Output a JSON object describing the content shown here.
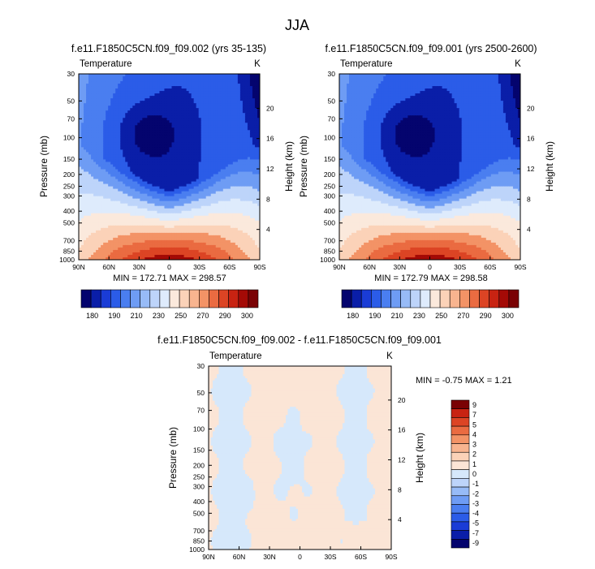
{
  "main_title": "JJA",
  "colors": {
    "palette": [
      "#04046e",
      "#0a1ea8",
      "#1a3cd6",
      "#2b5ce8",
      "#4a7ef0",
      "#6e9cf4",
      "#97bbf7",
      "#bdd4fa",
      "#deebfc",
      "#fbe9dc",
      "#fbd2b8",
      "#f8b48f",
      "#f39366",
      "#ea6b41",
      "#dc4424",
      "#c82312",
      "#a40a06",
      "#7a0204"
    ],
    "diff_palette": [
      "#04046e",
      "#0a1ea8",
      "#1a3cd6",
      "#2b5ce8",
      "#4a7ef0",
      "#6e9cf4",
      "#97bbf7",
      "#bdd4fa",
      "#d6e8fb",
      "#fbe5d6",
      "#fbd2b8",
      "#f8b48f",
      "#f39366",
      "#ea6b41",
      "#dc4424",
      "#c82312",
      "#7a0204"
    ]
  },
  "chart_data": [
    {
      "type": "heatmap",
      "id": "panel-1",
      "title": "f.e11.F1850C5CN.f09_f09.002 (yrs 35-135)",
      "left_label": "Temperature",
      "right_label": "K",
      "ylabel": "Pressure (mb)",
      "y2label": "Height (km)",
      "x_ticks": [
        "90N",
        "60N",
        "30N",
        "0",
        "30S",
        "60S",
        "90S"
      ],
      "y_ticks": [
        "30",
        "50",
        "70",
        "100",
        "150",
        "200",
        "250",
        "300",
        "400",
        "500",
        "700",
        "850",
        "1000"
      ],
      "y2_ticks": [
        "20",
        "16",
        "12",
        "8",
        "4"
      ],
      "stats": "MIN = 172.71   MAX = 298.57",
      "levels": [
        180,
        190,
        200,
        210,
        220,
        230,
        240,
        250,
        260,
        270,
        280,
        290,
        300
      ],
      "level_labels": [
        "180",
        "190",
        "210",
        "230",
        "250",
        "270",
        "290",
        "300"
      ]
    },
    {
      "type": "heatmap",
      "id": "panel-2",
      "title": "f.e11.F1850C5CN.f09_f09.001 (yrs 2500-2600)",
      "left_label": "Temperature",
      "right_label": "K",
      "ylabel": "Pressure (mb)",
      "y2label": "Height (km)",
      "x_ticks": [
        "90N",
        "60N",
        "30N",
        "0",
        "30S",
        "60S",
        "90S"
      ],
      "y_ticks": [
        "30",
        "50",
        "70",
        "100",
        "150",
        "200",
        "250",
        "300",
        "400",
        "500",
        "700",
        "850",
        "1000"
      ],
      "y2_ticks": [
        "20",
        "16",
        "12",
        "8",
        "4"
      ],
      "stats": "MIN = 172.79   MAX = 298.58",
      "levels": [
        180,
        190,
        200,
        210,
        220,
        230,
        240,
        250,
        260,
        270,
        280,
        290,
        300
      ],
      "level_labels": [
        "180",
        "190",
        "210",
        "230",
        "250",
        "270",
        "290",
        "300"
      ]
    },
    {
      "type": "heatmap",
      "id": "panel-diff",
      "title": "f.e11.F1850C5CN.f09_f09.002 - f.e11.F1850C5CN.f09_f09.001",
      "left_label": "Temperature",
      "right_label": "K",
      "ylabel": "Pressure (mb)",
      "y2label": "Height (km)",
      "x_ticks": [
        "90N",
        "60N",
        "30N",
        "0",
        "30S",
        "60S",
        "90S"
      ],
      "y_ticks": [
        "30",
        "50",
        "70",
        "100",
        "150",
        "200",
        "250",
        "300",
        "400",
        "500",
        "700",
        "850",
        "1000"
      ],
      "y2_ticks": [
        "20",
        "16",
        "12",
        "8",
        "4"
      ],
      "stats": "MIN =  -0.75   MAX =   1.21",
      "level_labels": [
        "9",
        "7",
        "5",
        "4",
        "3",
        "2",
        "1",
        "0",
        "-1",
        "-2",
        "-3",
        "-4",
        "-5",
        "-7",
        "-9"
      ]
    }
  ]
}
